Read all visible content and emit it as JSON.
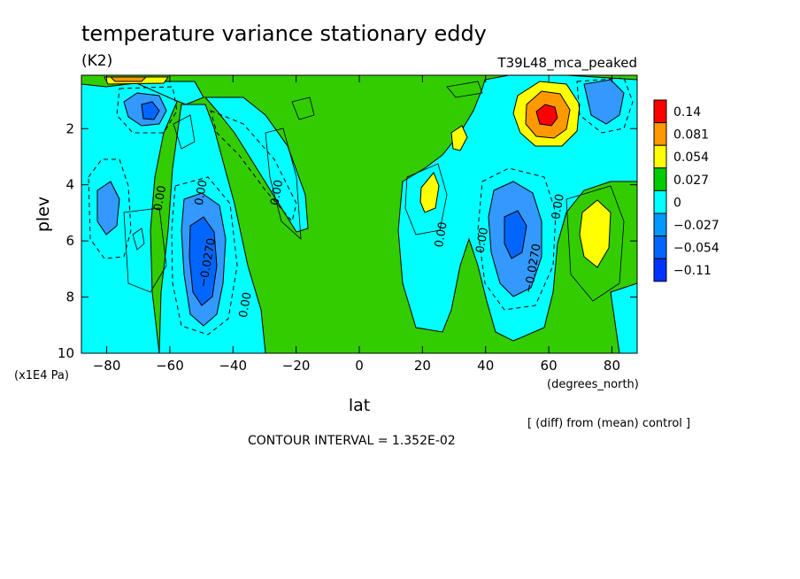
{
  "chart_data": {
    "type": "heatmap",
    "title": "temperature variance stationary eddy",
    "units": "(K2)",
    "experiment": "T39L48_mca_peaked",
    "xlabel": "lat",
    "x_units": "(degrees_north)",
    "ylabel": "plev",
    "y_units": "(x1E4 Pa)",
    "note": "[ (diff) from (mean) control ]",
    "contour_interval_text": "CONTOUR INTERVAL = 1.352E-02",
    "x_ticks": [
      -80,
      -60,
      -40,
      -20,
      0,
      20,
      40,
      60,
      80
    ],
    "y_ticks": [
      2,
      4,
      6,
      8,
      10
    ],
    "xlim": [
      -88,
      88
    ],
    "ylim": [
      10,
      0.1
    ],
    "legend_levels": [
      "0.14",
      "0.081",
      "0.054",
      "0.027",
      "0",
      "-0.027",
      "-0.054",
      "-0.11"
    ],
    "legend_colors": [
      "#ff0000",
      "#ff9900",
      "#ffff00",
      "#00cc00",
      "#00ffff",
      "#0099ff",
      "#0066ff",
      "#0033ff"
    ],
    "fill_colors": {
      "background": "#33cc00",
      "neg_1": "#00ffff",
      "neg_2": "#3399ff",
      "neg_3": "#0066ff",
      "pos_1": "#ffff00",
      "pos_2": "#ff9900",
      "pos_3": "#ff0000"
    },
    "contour_labels": [
      {
        "text": "0.00",
        "lat": -62,
        "plev": 4.5
      },
      {
        "text": "0.00",
        "lat": -49,
        "plev": 4.3
      },
      {
        "text": "-0.0270",
        "lat": -47,
        "plev": 6.8
      },
      {
        "text": "0.00",
        "lat": -35,
        "plev": 8.3
      },
      {
        "text": "0.00",
        "lat": -25,
        "plev": 4.3
      },
      {
        "text": "0.00",
        "lat": 27,
        "plev": 5.8
      },
      {
        "text": "0.00",
        "lat": 40,
        "plev": 6.0
      },
      {
        "text": "-0.0270",
        "lat": 56,
        "plev": 7.0
      },
      {
        "text": "0.00",
        "lat": 64,
        "plev": 4.8
      }
    ]
  }
}
